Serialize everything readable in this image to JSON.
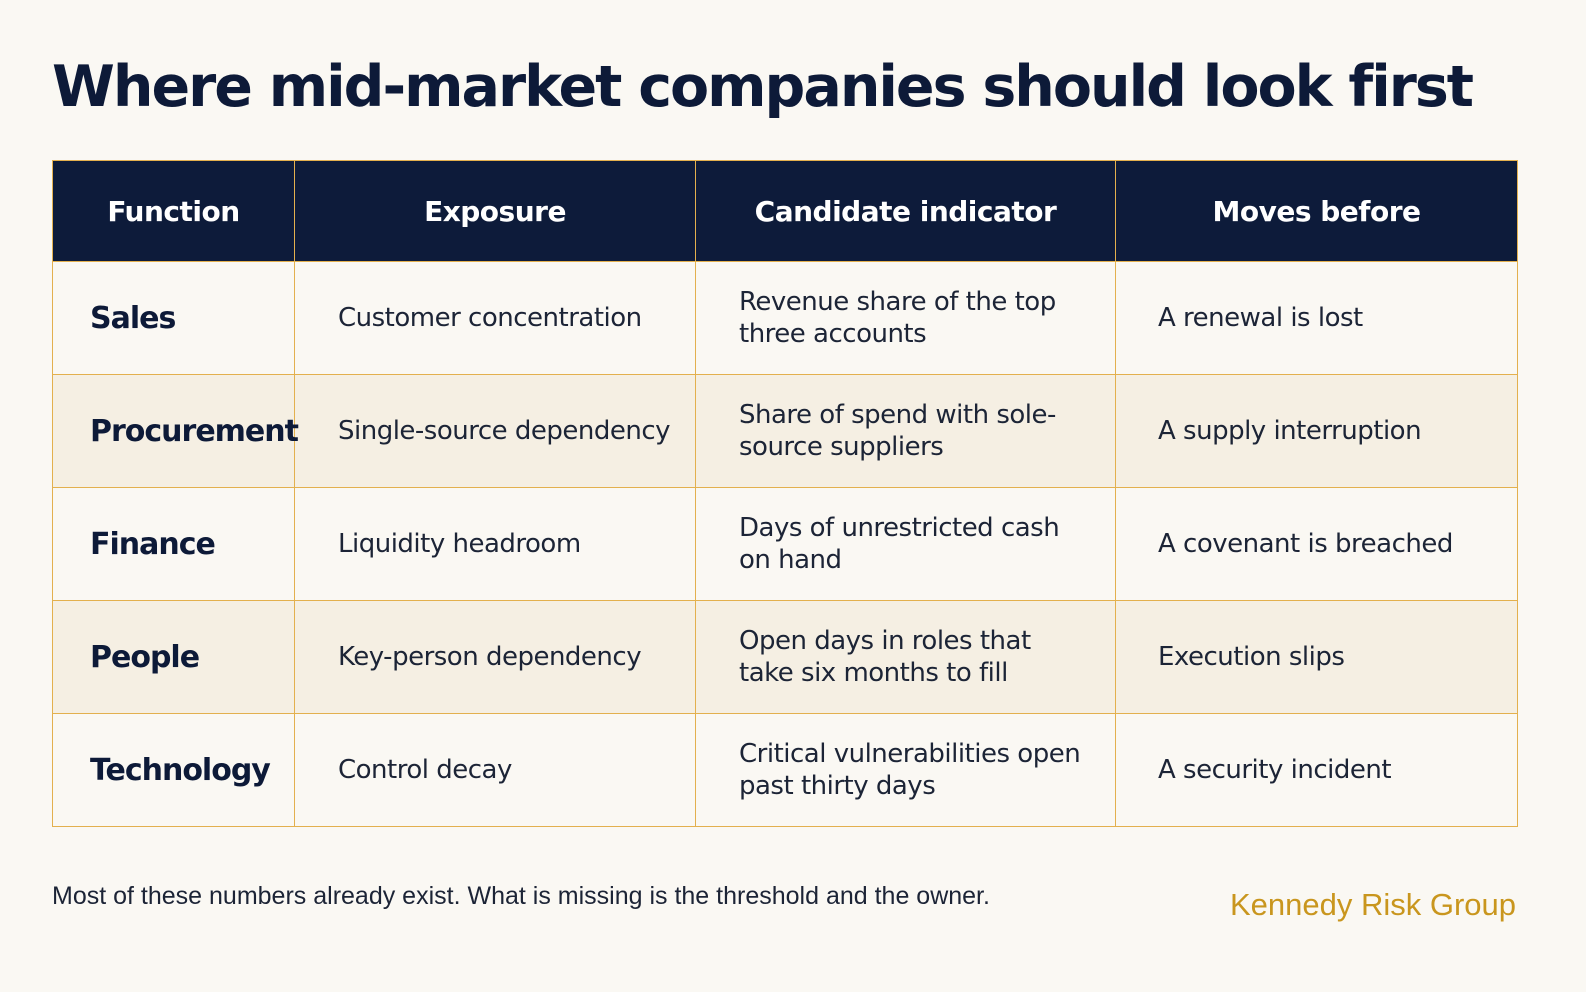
{
  "title": "Where mid-market companies should look first",
  "table": {
    "headers": [
      "Function",
      "Exposure",
      "Candidate indicator",
      "Moves before"
    ],
    "rows": [
      {
        "function": "Sales",
        "exposure": "Customer concentration",
        "indicator": "Revenue share of the top three accounts",
        "moves_before": "A renewal is lost"
      },
      {
        "function": "Procurement",
        "exposure": "Single-source dependency",
        "indicator": "Share of spend with sole-source suppliers",
        "moves_before": "A supply interruption"
      },
      {
        "function": "Finance",
        "exposure": "Liquidity headroom",
        "indicator": "Days of unrestricted cash on hand",
        "moves_before": "A covenant is breached"
      },
      {
        "function": "People",
        "exposure": "Key-person dependency",
        "indicator": "Open days in roles that take six months to fill",
        "moves_before": "Execution slips"
      },
      {
        "function": "Technology",
        "exposure": "Control decay",
        "indicator": "Critical vulnerabilities open past thirty days",
        "moves_before": "A security incident"
      }
    ]
  },
  "footnote": "Most of these numbers already exist. What is missing is the threshold and the owner.",
  "brand": "Kennedy Risk Group",
  "colors": {
    "header_bg": "#0d1b3a",
    "grid_line": "#e3b04e",
    "brand": "#c9961e",
    "page_bg": "#faf8f3",
    "alt_row_bg": "#f5efe3"
  }
}
